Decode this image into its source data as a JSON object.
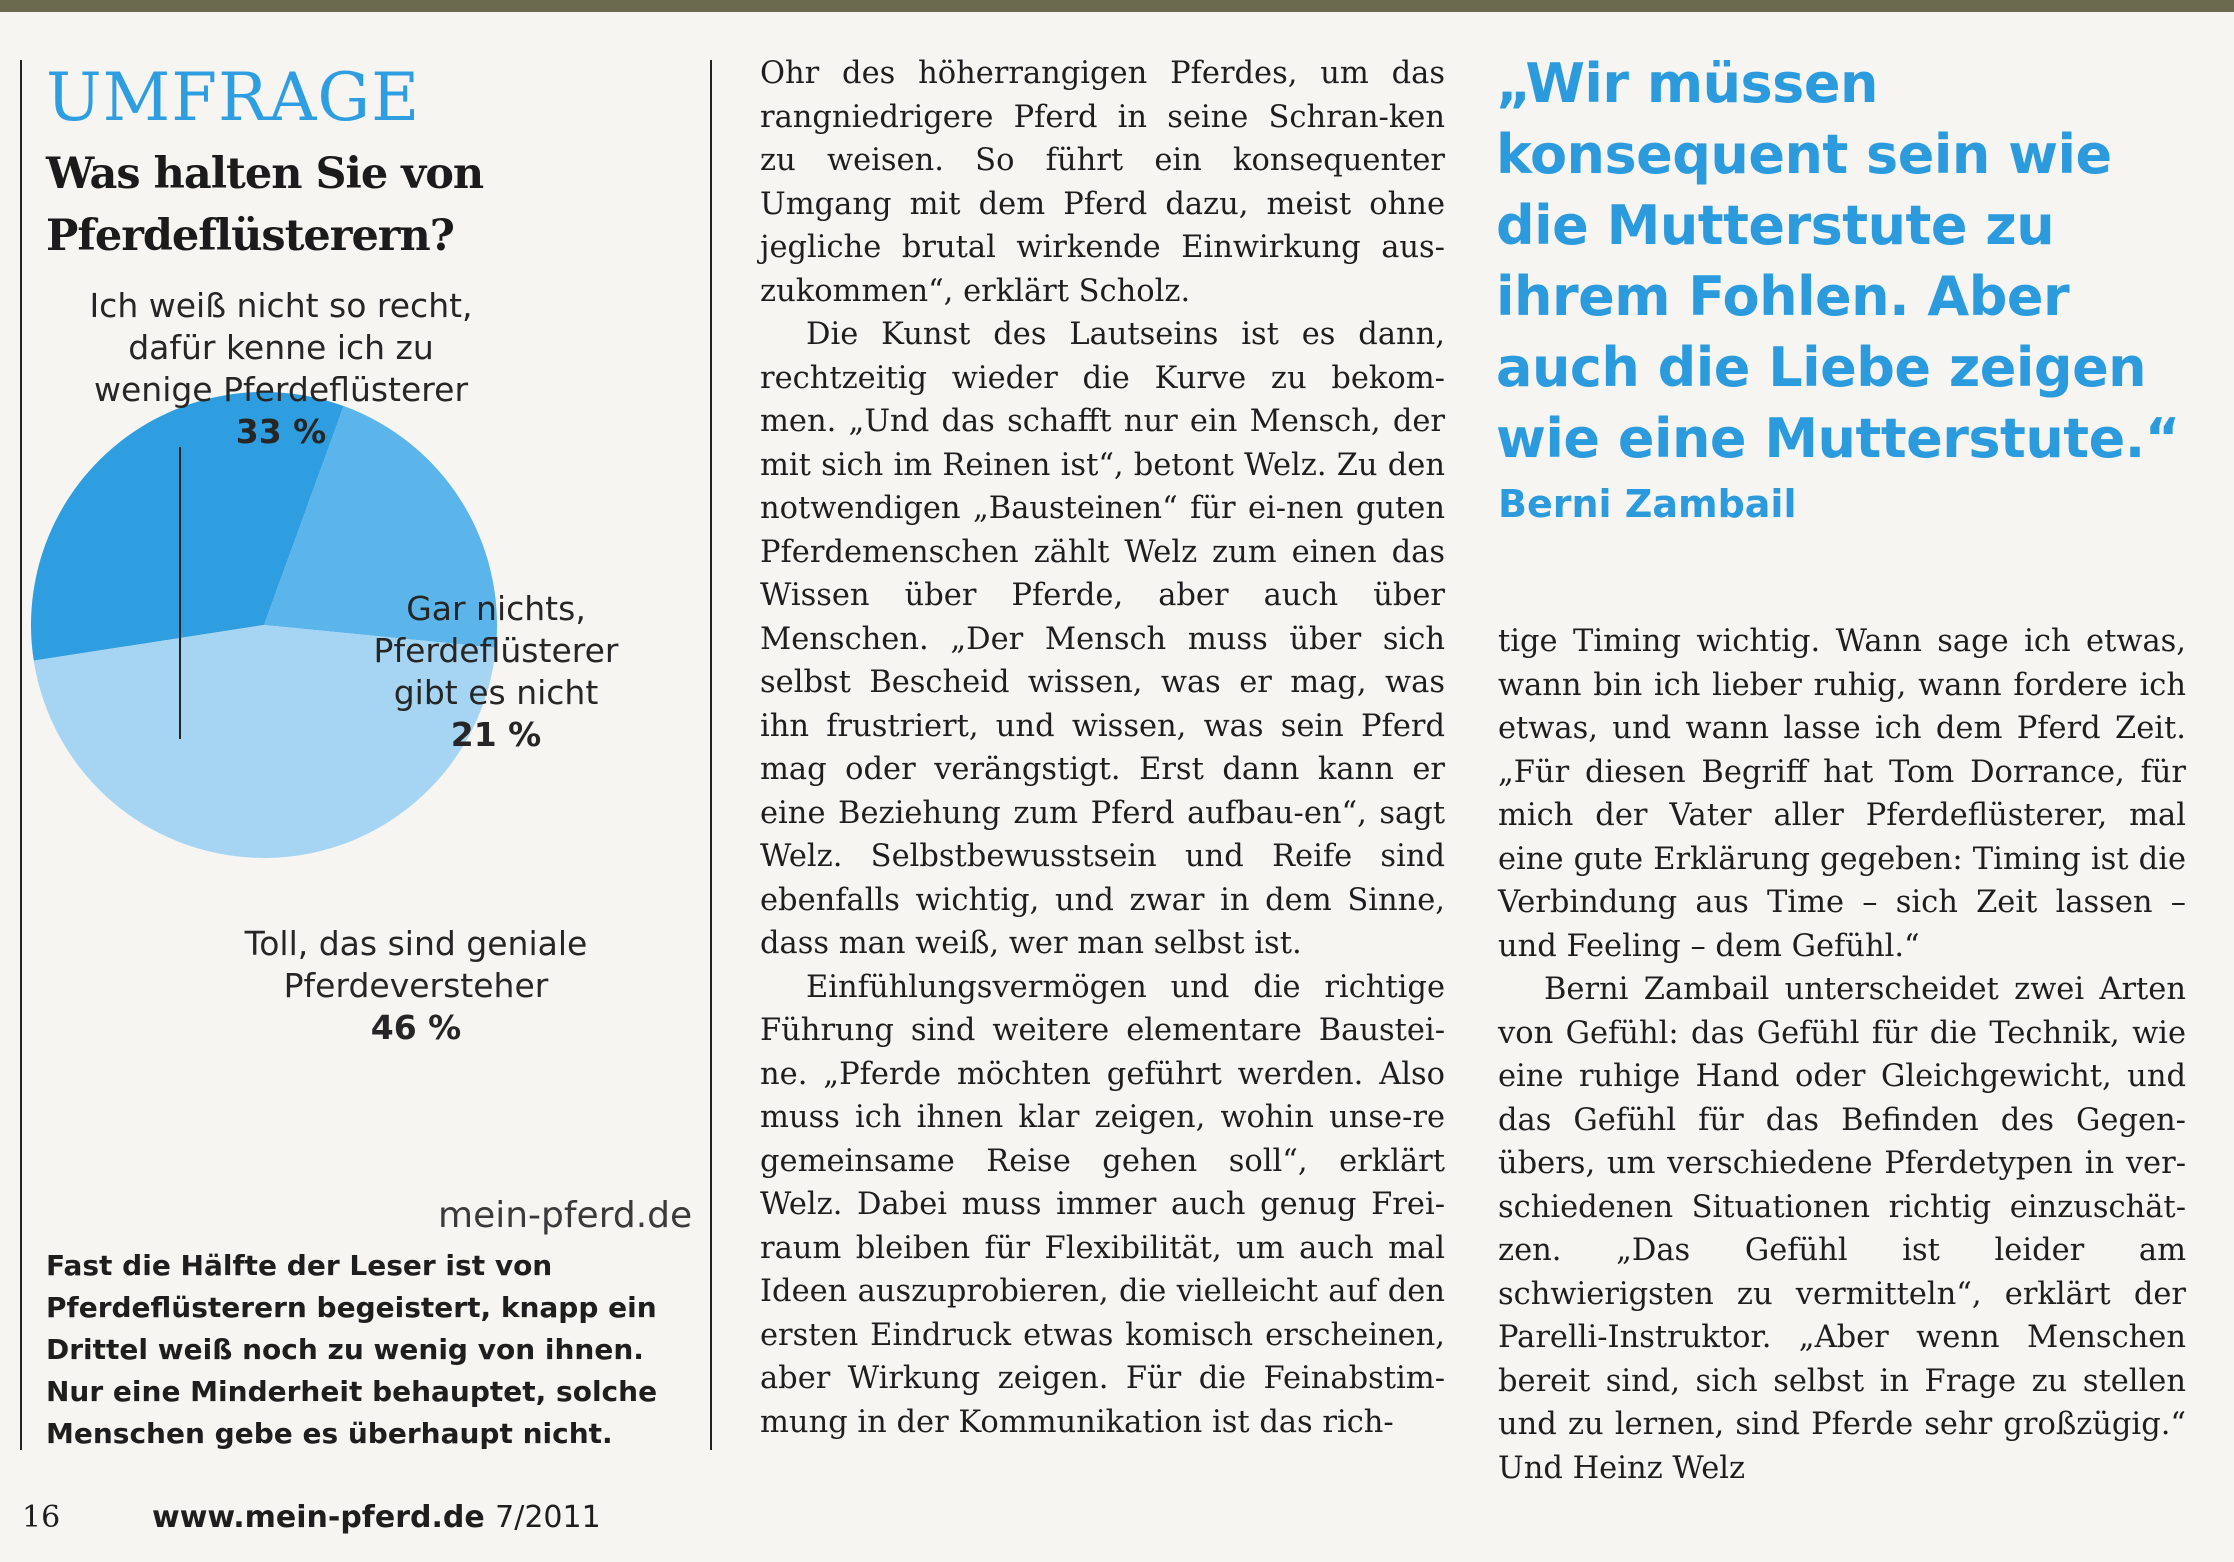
{
  "survey": {
    "kicker": "UMFRAGE",
    "question": "Was halten Sie von Pferdeflüsterern?",
    "source": "mein-pferd.de",
    "summary": "Fast die Hälfte der Leser ist von Pferdeflüsterern begeistert, knapp ein Drittel weiß noch zu wenig von ihnen. Nur eine Minderheit behauptet, solche Menschen gebe es überhaupt nicht."
  },
  "chart_data": {
    "type": "pie",
    "title": "Was halten Sie von Pferdeflüsterern?",
    "slices": [
      {
        "label": "Ich weiß nicht so recht, dafür kenne ich zu wenige Pferdeflüsterer",
        "value": 33,
        "value_label": "33 %",
        "color": "#2f9ee0"
      },
      {
        "label": "Gar nichts, Pferdeflüsterer gibt es nicht",
        "value": 21,
        "value_label": "21 %",
        "color": "#5bb4ea"
      },
      {
        "label": "Toll, das sind geniale Pferdeversteher",
        "value": 46,
        "value_label": "46 %",
        "color": "#a6d5f4"
      }
    ]
  },
  "pie_labels": {
    "a_line1": "Ich weiß nicht so recht,",
    "a_line2": "dafür kenne ich zu",
    "a_line3": "wenige Pferdeflüsterer",
    "a_pct": "33 %",
    "b_line1": "Gar nichts,",
    "b_line2": "Pferdeflüsterer",
    "b_line3": "gibt es nicht",
    "b_pct": "21 %",
    "c_line1": "Toll, das sind geniale",
    "c_line2": "Pferdeversteher",
    "c_pct": "46 %"
  },
  "article": {
    "mid_p1": "Ohr des höherrangigen Pferdes, um das rangniedrigere Pferd in seine Schran-ken zu weisen. So führt ein konsequenter Umgang mit dem Pferd dazu, meist ohne jegliche brutal wirkende Einwirkung aus-zukommen“, erklärt Scholz.",
    "mid_p2": "Die Kunst des Lautseins ist es dann, rechtzeitig wieder die Kurve zu bekom-men. „Und das schafft nur ein Mensch, der mit sich im Reinen ist“, betont Welz. Zu den notwendigen „Bausteinen“ für ei-nen guten Pferdemenschen zählt Welz zum einen das Wissen über Pferde, aber auch über Menschen. „Der Mensch muss über sich selbst Bescheid wissen, was er mag, was ihn frustriert, und wissen, was sein Pferd mag oder verängstigt. Erst dann kann er eine Beziehung zum Pferd aufbau-en“, sagt Welz. Selbstbewusstsein und Reife sind ebenfalls wichtig, und zwar in dem Sinne, dass man weiß, wer man selbst ist.",
    "mid_p3": "Einfühlungsvermögen und die richtige Führung sind weitere elementare Baustei-ne. „Pferde möchten geführt werden. Also muss ich ihnen klar zeigen, wohin unse-re gemeinsame Reise gehen soll“, erklärt Welz. Dabei muss immer auch genug Frei-raum bleiben für Flexibilität, um auch mal Ideen auszuprobieren, die vielleicht auf den ersten Eindruck etwas komisch erscheinen, aber Wirkung zeigen. Für die Feinabstim-mung in der Kommunikation ist das rich-",
    "right_p1": "tige Timing wichtig. Wann sage ich etwas, wann bin ich lieber ruhig, wann fordere ich etwas, und wann lasse ich dem Pferd Zeit. „Für diesen Begriff hat Tom Dorrance, für mich der Vater aller Pferdeflüsterer, mal eine gute Erklärung gegeben: Timing ist die Verbindung aus Time – sich Zeit lassen – und Feeling – dem Gefühl.“",
    "right_p2": "Berni Zambail unterscheidet zwei Arten von Gefühl: das Gefühl für die Technik, wie eine ruhige Hand oder Gleichgewicht, und das Gefühl für das Befinden des Gegen-übers, um verschiedene Pferdetypen in ver-schiedenen Situationen richtig einzuschät-zen. „Das Gefühl ist leider am schwierigsten zu vermitteln“, erklärt der Parelli-Instruktor. „Aber wenn Menschen bereit sind, sich selbst in Frage zu stellen und zu lernen, sind Pferde sehr großzügig.“ Und Heinz Welz"
  },
  "pullquote": {
    "text": "„Wir müssen konsequent sein wie die Mutterstute zu ihrem Fohlen. Aber auch die Liebe zeigen wie eine Mutterstute.“",
    "author": "Berni Zambail"
  },
  "footer": {
    "page": "16",
    "site": "www.mein-pferd.de",
    "issue": "7/2011"
  }
}
